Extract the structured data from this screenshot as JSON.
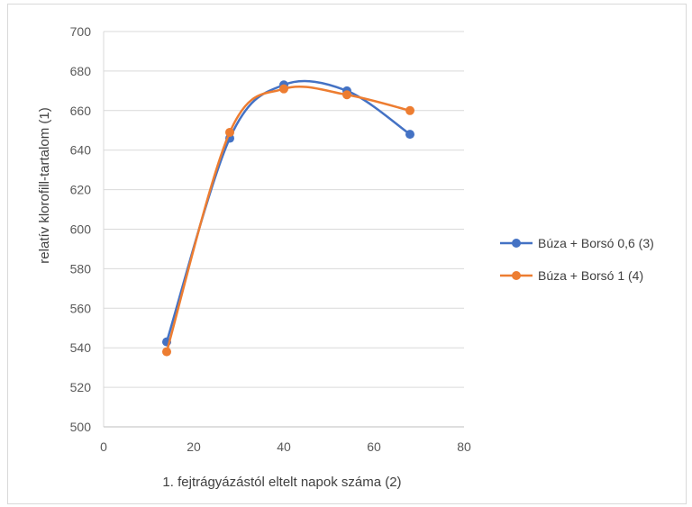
{
  "chart_data": {
    "type": "line",
    "title": "",
    "xlabel": "1. fejtrágyázástól eltelt napok száma (2)",
    "ylabel": "relatív klorofill-tartalom (1)",
    "xlim": [
      0,
      80
    ],
    "ylim": [
      500,
      700
    ],
    "x_ticks": [
      0,
      20,
      40,
      60,
      80
    ],
    "y_ticks": [
      500,
      520,
      540,
      560,
      580,
      600,
      620,
      640,
      660,
      680,
      700
    ],
    "grid": "horizontal",
    "smooth": true,
    "legend_position": "right",
    "series": [
      {
        "name": "Búza + Borsó 0,6 (3)",
        "color": "#4472c4",
        "x": [
          14,
          28,
          40,
          54,
          68
        ],
        "values": [
          543,
          646,
          673,
          670,
          648
        ]
      },
      {
        "name": "Búza + Borsó 1 (4)",
        "color": "#ed7d31",
        "x": [
          14,
          28,
          40,
          54,
          68
        ],
        "values": [
          538,
          649,
          671,
          668,
          660
        ]
      }
    ]
  }
}
